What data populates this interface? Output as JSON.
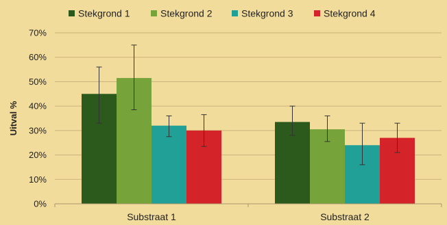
{
  "chart_data": {
    "type": "bar",
    "title": "",
    "xlabel": "",
    "ylabel": "Uitval %",
    "ylim": [
      0,
      70
    ],
    "yticks": [
      "0%",
      "10%",
      "20%",
      "30%",
      "40%",
      "50%",
      "60%",
      "70%"
    ],
    "categories": [
      "Substraat 1",
      "Substraat 2"
    ],
    "series": [
      {
        "name": "Stekgrond 1",
        "color": "#2b5a1c",
        "values": [
          45,
          33.5
        ],
        "err_low": [
          33,
          28
        ],
        "err_high": [
          56,
          40
        ]
      },
      {
        "name": "Stekgrond 2",
        "color": "#76a33a",
        "values": [
          51.5,
          30.5
        ],
        "err_low": [
          38.5,
          25.5
        ],
        "err_high": [
          65,
          36
        ]
      },
      {
        "name": "Stekgrond 3",
        "color": "#20a097",
        "values": [
          32,
          24
        ],
        "err_low": [
          27.5,
          16
        ],
        "err_high": [
          36,
          33
        ]
      },
      {
        "name": "Stekgrond 4",
        "color": "#d5232a",
        "values": [
          30,
          27
        ],
        "err_low": [
          23.5,
          21
        ],
        "err_high": [
          36.5,
          33
        ]
      }
    ],
    "grid": true,
    "legend": "top",
    "error_bars": true
  }
}
